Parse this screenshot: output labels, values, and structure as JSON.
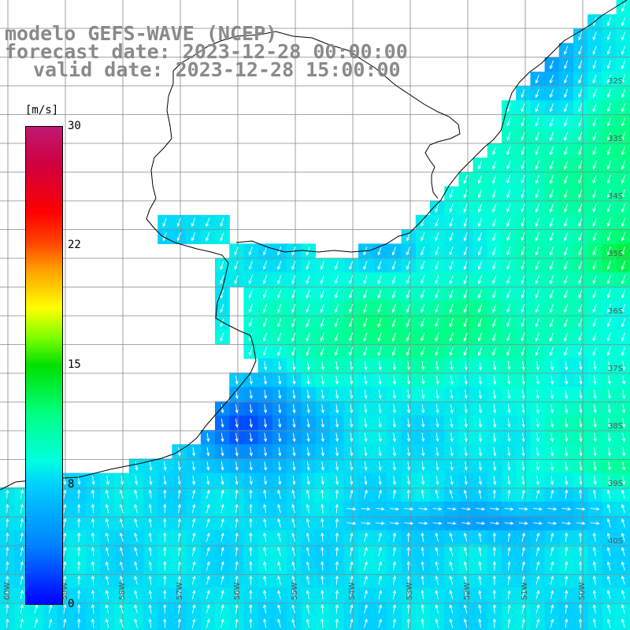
{
  "title": {
    "line1": "modelo GEFS-WAVE (NCEP)",
    "line2": "forecast date: 2023-12-28 00:00:00",
    "line3": "valid date: 2023-12-28 15:00:00"
  },
  "colorbar": {
    "unit": "[m/s]",
    "ticks": [
      "30",
      "22",
      "15",
      "8",
      "0"
    ],
    "tick_values": [
      30,
      22,
      15,
      8,
      0
    ],
    "min": 0,
    "max": 30
  },
  "grid": {
    "lon_labels": [
      "60W",
      "59W",
      "58W",
      "57W",
      "56W",
      "55W",
      "54W",
      "53W",
      "52W",
      "51W",
      "50W"
    ],
    "lat_labels": [
      "32S",
      "33S",
      "34S",
      "35S",
      "36S",
      "37S",
      "38S",
      "39S",
      "40S"
    ]
  },
  "colors": {
    "title": "#8a8a8a",
    "land": "#ffffff",
    "grid": "#888888",
    "coast": "#000000",
    "arrow": "#ffffff"
  }
}
